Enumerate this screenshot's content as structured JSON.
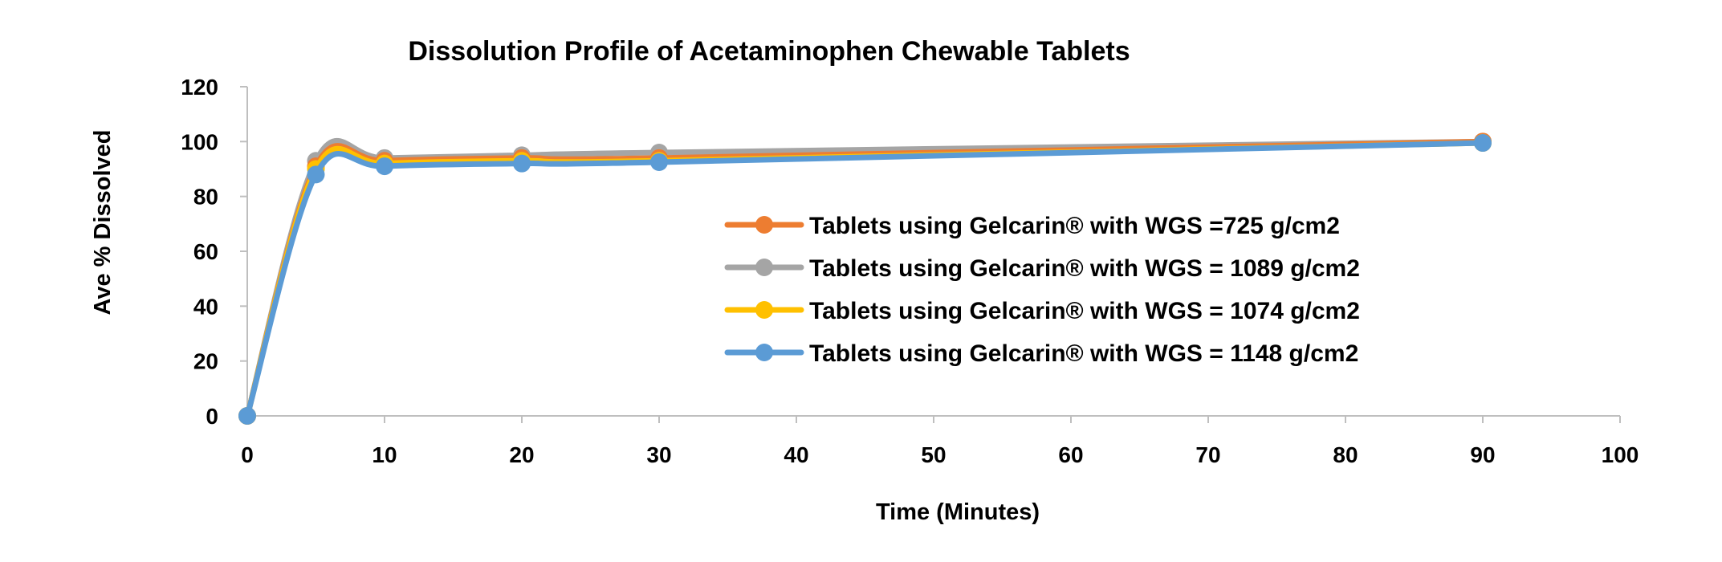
{
  "chart_data": {
    "type": "line",
    "title": "Dissolution Profile of Acetaminophen Chewable Tablets",
    "xlabel": "Time (Minutes)",
    "ylabel": "Ave % Dissolved",
    "xlim": [
      0,
      100
    ],
    "ylim": [
      0,
      120
    ],
    "xticks": [
      0,
      10,
      20,
      30,
      40,
      50,
      60,
      70,
      80,
      90,
      100
    ],
    "yticks": [
      0,
      20,
      40,
      60,
      80,
      100,
      120
    ],
    "x": [
      0,
      5,
      10,
      20,
      30,
      90
    ],
    "series": [
      {
        "name": "Tablets using Gelcarin® with WGS =725 g/cm2",
        "color": "#ED7D31",
        "values": [
          0,
          91,
          93,
          94,
          94,
          100
        ]
      },
      {
        "name": "Tablets using Gelcarin® with WGS = 1089 g/cm2",
        "color": "#A5A5A5",
        "values": [
          0,
          93,
          94,
          95,
          96,
          100
        ]
      },
      {
        "name": "Tablets using Gelcarin® with WGS = 1074 g/cm2",
        "color": "#FFC000",
        "values": [
          0,
          90,
          92,
          93,
          93,
          99.5
        ]
      },
      {
        "name": "Tablets using Gelcarin® with WGS = 1148 g/cm2",
        "color": "#5B9BD5",
        "values": [
          0,
          88,
          91,
          92,
          92.5,
          99.5
        ]
      }
    ],
    "grid": false,
    "legend_position": "center-right"
  }
}
